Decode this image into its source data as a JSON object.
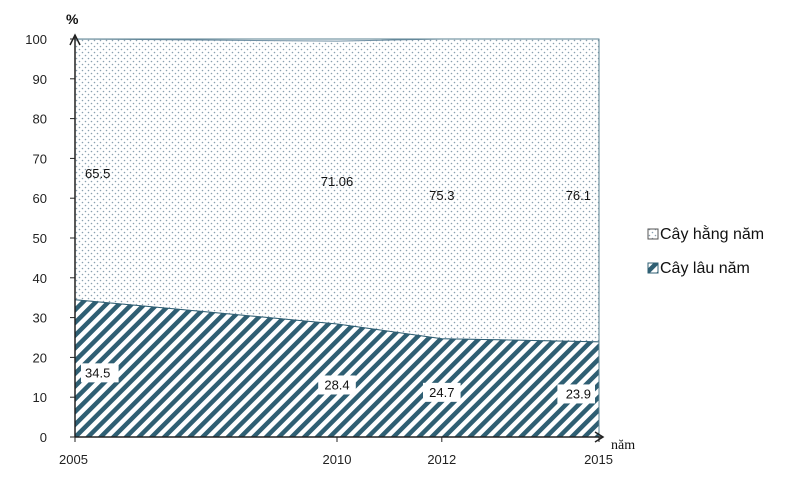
{
  "chart_data": {
    "type": "area",
    "x": [
      2005,
      2010,
      2012,
      2015
    ],
    "x_tick_labels": [
      "2005",
      "2010",
      "2012",
      "2015"
    ],
    "ylim": [
      0,
      100
    ],
    "y_ticks": [
      0,
      10,
      20,
      30,
      40,
      50,
      60,
      70,
      80,
      90,
      100
    ],
    "ylabel": "%",
    "xlabel": "năm",
    "stacked": true,
    "series": [
      {
        "name": "Cây lâu năm",
        "values": [
          34.5,
          28.4,
          24.7,
          23.9
        ],
        "labels": [
          "34.5",
          "28.4",
          "24.7",
          "23.9"
        ],
        "fill": "hatch",
        "color": "#2f5f73"
      },
      {
        "name": "Cây hằng năm",
        "values": [
          65.5,
          71.06,
          75.3,
          76.1
        ],
        "labels": [
          "65.5",
          "71.06",
          "75.3",
          "76.1"
        ],
        "fill": "dots",
        "color": "#6f8fa3"
      }
    ],
    "legend": {
      "position": "right",
      "items": [
        "Cây hằng năm",
        "Cây lâu năm"
      ]
    },
    "grid": false
  }
}
